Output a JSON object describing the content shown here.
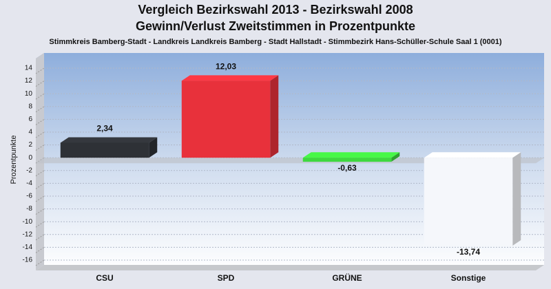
{
  "chart_data": {
    "type": "bar",
    "title": [
      "Vergleich Bezirkswahl 2013 - Bezirkswahl 2008",
      "Gewinn/Verlust Zweitstimmen in Prozentpunkte"
    ],
    "subtitle": "Stimmkreis Bamberg-Stadt - Landkreis Landkreis Bamberg - Stadt Hallstadt - Stimmbezirk Hans-Schüller-Schule Saal 1 (0001)",
    "y_label": "Prozentpunkte",
    "categories": [
      "CSU",
      "SPD",
      "GRÜNE",
      "Sonstige"
    ],
    "values": [
      2.34,
      12.03,
      -0.63,
      -13.74
    ],
    "value_labels": [
      "2,34",
      "12,03",
      "-0,63",
      "-13,74"
    ],
    "colors": [
      "#2e3136",
      "#e8313b",
      "#3ed83e",
      "#f5f7fb"
    ],
    "ylim": [
      -16,
      14
    ],
    "yticks": [
      -16,
      -14,
      -12,
      -10,
      -8,
      -6,
      -4,
      -2,
      0,
      2,
      4,
      6,
      8,
      10,
      12,
      14
    ],
    "grid": true
  }
}
